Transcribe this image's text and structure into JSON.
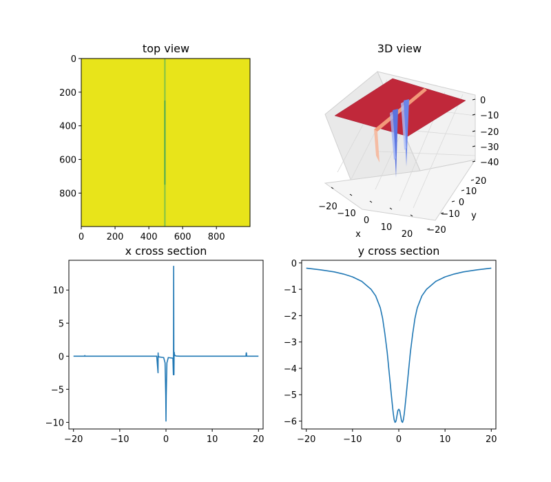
{
  "chart_data": [
    {
      "type": "heatmap",
      "title": "top view",
      "xlabel": "",
      "ylabel": "",
      "xlim": [
        0,
        999
      ],
      "ylim": [
        999,
        0
      ],
      "x_ticks": [
        0,
        200,
        400,
        600,
        800
      ],
      "y_ticks": [
        0,
        200,
        400,
        600,
        800
      ],
      "colors": {
        "background": "#e8e41a",
        "ridge": "#7ec24a",
        "ridge_center": "#3aa35a"
      },
      "ridge": {
        "x": 495,
        "y_start": 0,
        "y_end": 999,
        "intense_y_range": [
          250,
          750
        ]
      },
      "grid": false
    },
    {
      "type": "surface3d",
      "title": "3D view",
      "xlabel": "x",
      "ylabel": "y",
      "x_ticks": [
        -20,
        -10,
        0,
        10,
        20
      ],
      "y_ticks": [
        -20,
        -10,
        0,
        10,
        20
      ],
      "z_ticks": [
        0,
        -10,
        -20,
        -30,
        -40
      ],
      "zlim": [
        -40,
        0
      ],
      "colormap": "coolwarm",
      "colors": {
        "plane": "#c0283a",
        "spike": "#5a74e0",
        "ridge": "#f29a7a"
      }
    },
    {
      "type": "line",
      "title": "x cross section",
      "xlabel": "",
      "ylabel": "",
      "xlim": [
        -21,
        21
      ],
      "ylim": [
        -11,
        14.5
      ],
      "x_ticks": [
        -20,
        -10,
        0,
        10,
        20
      ],
      "y_ticks": [
        -10,
        -5,
        0,
        5,
        10
      ],
      "grid": false,
      "series": [
        {
          "color": "#1f77b4",
          "x": [
            -20,
            -17.6,
            -17.55,
            -17.5,
            -2.0,
            -1.72,
            -1.7,
            -1.67,
            -1.65,
            -1.62,
            -1.55,
            -0.5,
            -0.2,
            -0.05,
            0.0,
            0.05,
            0.2,
            0.5,
            1.5,
            1.6,
            1.63,
            1.66,
            1.7,
            1.72,
            1.75,
            1.78,
            1.82,
            1.9,
            2.0,
            2.2,
            3.0,
            17.3,
            17.35,
            17.4,
            17.45,
            20
          ],
          "y": [
            0.0,
            0.0,
            0.1,
            0.0,
            0.0,
            -2.5,
            0.5,
            0.0,
            -0.1,
            0.0,
            -0.1,
            -0.2,
            -1.0,
            -6.0,
            -9.8,
            -6.0,
            -1.0,
            -0.2,
            -0.3,
            -2.8,
            0.5,
            13.6,
            0.8,
            -2.8,
            -0.3,
            0.6,
            0.3,
            0.15,
            0.08,
            0.03,
            0.0,
            0.0,
            0.5,
            0.5,
            0.0,
            0.0
          ]
        }
      ]
    },
    {
      "type": "line",
      "title": "y cross section",
      "xlabel": "",
      "ylabel": "",
      "xlim": [
        -21,
        21
      ],
      "ylim": [
        -6.3,
        0.1
      ],
      "x_ticks": [
        -20,
        -10,
        0,
        10,
        20
      ],
      "y_ticks": [
        0,
        -1,
        -2,
        -3,
        -4,
        -5,
        -6
      ],
      "grid": false,
      "series": [
        {
          "color": "#1f77b4",
          "x": [
            -20,
            -17,
            -14,
            -12,
            -10,
            -8,
            -6,
            -5,
            -4,
            -3.5,
            -3,
            -2.5,
            -2,
            -1.5,
            -1.2,
            -1,
            -0.8,
            -0.6,
            -0.4,
            -0.2,
            0,
            0.2,
            0.4,
            0.6,
            0.8,
            1,
            1.2,
            1.5,
            2,
            2.5,
            3,
            3.5,
            4,
            5,
            6,
            8,
            10,
            12,
            14,
            17,
            20
          ],
          "y": [
            -0.2,
            -0.26,
            -0.34,
            -0.42,
            -0.53,
            -0.7,
            -1.0,
            -1.25,
            -1.7,
            -2.1,
            -2.7,
            -3.4,
            -4.3,
            -5.2,
            -5.7,
            -5.95,
            -6.05,
            -6.0,
            -5.8,
            -5.6,
            -5.55,
            -5.6,
            -5.8,
            -6.0,
            -6.05,
            -5.95,
            -5.7,
            -5.2,
            -4.3,
            -3.4,
            -2.7,
            -2.1,
            -1.7,
            -1.25,
            -1.0,
            -0.7,
            -0.53,
            -0.42,
            -0.34,
            -0.26,
            -0.2
          ]
        }
      ]
    }
  ]
}
